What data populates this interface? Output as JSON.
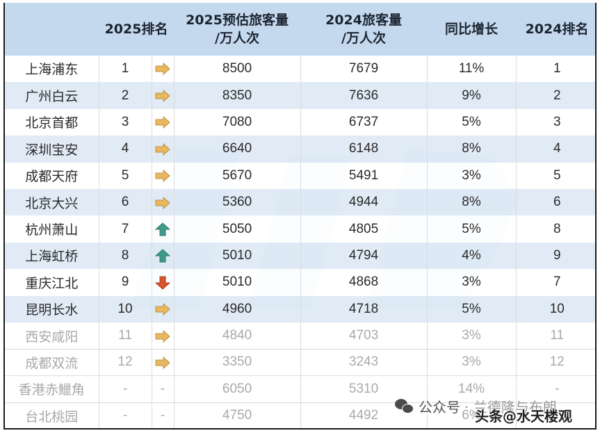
{
  "header": {
    "col_airport": "",
    "col_rank2025": "2025排名",
    "col_est2025_line1": "2025预估旅客量",
    "col_est2025_line2": "/万人次",
    "col_pax2024_line1": "2024旅客量",
    "col_pax2024_line2": "/万人次",
    "col_growth": "同比增长",
    "col_rank2024": "2024排名"
  },
  "colors": {
    "header_bg": "#c5d9ee",
    "row_stripe": "#dbe8f5",
    "arrow_same": "#e8b860",
    "arrow_up": "#3f9a8a",
    "arrow_down": "#d9542c",
    "faded_text": "#a9a9a9"
  },
  "rows": [
    {
      "airport": "上海浦东",
      "rank2025": "1",
      "trend": "same",
      "est2025": "8500",
      "pax2024": "7679",
      "growth": "11%",
      "rank2024": "1"
    },
    {
      "airport": "广州白云",
      "rank2025": "2",
      "trend": "same",
      "est2025": "8350",
      "pax2024": "7636",
      "growth": "9%",
      "rank2024": "2"
    },
    {
      "airport": "北京首都",
      "rank2025": "3",
      "trend": "same",
      "est2025": "7080",
      "pax2024": "6737",
      "growth": "5%",
      "rank2024": "3"
    },
    {
      "airport": "深圳宝安",
      "rank2025": "4",
      "trend": "same",
      "est2025": "6640",
      "pax2024": "6148",
      "growth": "8%",
      "rank2024": "4"
    },
    {
      "airport": "成都天府",
      "rank2025": "5",
      "trend": "same",
      "est2025": "5670",
      "pax2024": "5491",
      "growth": "3%",
      "rank2024": "5"
    },
    {
      "airport": "北京大兴",
      "rank2025": "6",
      "trend": "same",
      "est2025": "5360",
      "pax2024": "4944",
      "growth": "8%",
      "rank2024": "6"
    },
    {
      "airport": "杭州萧山",
      "rank2025": "7",
      "trend": "up",
      "est2025": "5050",
      "pax2024": "4805",
      "growth": "5%",
      "rank2024": "8"
    },
    {
      "airport": "上海虹桥",
      "rank2025": "8",
      "trend": "up",
      "est2025": "5010",
      "pax2024": "4794",
      "growth": "4%",
      "rank2024": "9"
    },
    {
      "airport": "重庆江北",
      "rank2025": "9",
      "trend": "down",
      "est2025": "5010",
      "pax2024": "4868",
      "growth": "3%",
      "rank2024": "7"
    },
    {
      "airport": "昆明长水",
      "rank2025": "10",
      "trend": "same",
      "est2025": "4960",
      "pax2024": "4718",
      "growth": "5%",
      "rank2024": "10"
    },
    {
      "airport": "西安咸阳",
      "rank2025": "11",
      "trend": "same",
      "est2025": "4840",
      "pax2024": "4703",
      "growth": "3%",
      "rank2024": "11"
    },
    {
      "airport": "成都双流",
      "rank2025": "12",
      "trend": "same",
      "est2025": "3350",
      "pax2024": "3243",
      "growth": "3%",
      "rank2024": "12"
    },
    {
      "airport": "香港赤鱲角",
      "rank2025": "-",
      "trend": "-",
      "est2025": "6050",
      "pax2024": "5310",
      "growth": "14%",
      "rank2024": "-"
    },
    {
      "airport": "台北桃园",
      "rank2025": "-",
      "trend": "-",
      "est2025": "4750",
      "pax2024": "4492",
      "growth": "6%",
      "rank2024": ""
    }
  ],
  "watermarks": {
    "wechat_label": "公众号",
    "wechat_suffix": "· 兰德隆与布朗",
    "toutiao": "头条@水天楼观"
  }
}
